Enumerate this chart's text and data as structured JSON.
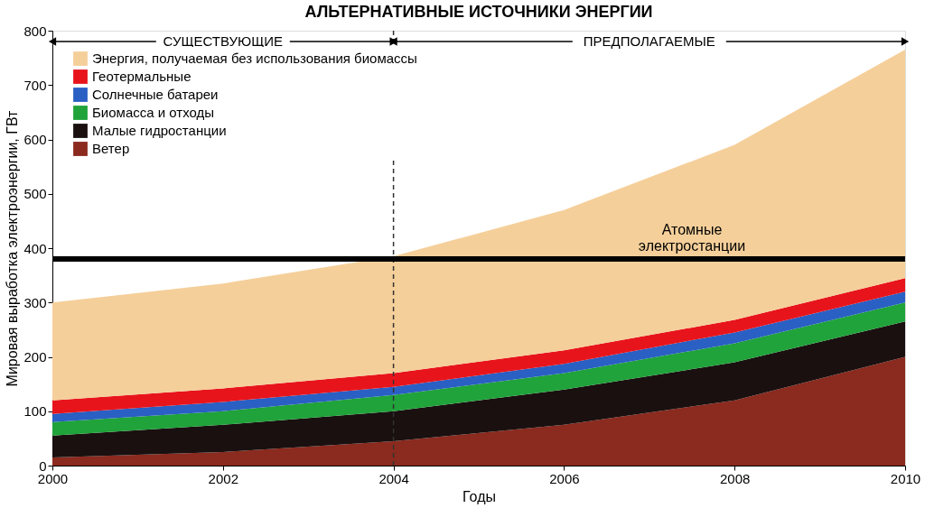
{
  "chart_data": {
    "type": "area",
    "stacked": true,
    "title": "АЛЬТЕРНАТИВНЫЕ ИСТОЧНИКИ ЭНЕРГИИ",
    "xlabel": "Годы",
    "ylabel": "Мировая выработка электроэнергии, ГВт",
    "x": [
      2000,
      2002,
      2004,
      2006,
      2008,
      2010
    ],
    "series": [
      {
        "name": "Ветер",
        "color": "#8b2a1e",
        "values": [
          15,
          25,
          45,
          75,
          120,
          200
        ]
      },
      {
        "name": "Малые гидростанции",
        "color": "#1a1010",
        "values": [
          40,
          50,
          55,
          65,
          70,
          65
        ]
      },
      {
        "name": "Биомасса и отходы",
        "color": "#1fa33a",
        "values": [
          25,
          25,
          30,
          30,
          35,
          35
        ]
      },
      {
        "name": "Солнечные батареи",
        "color": "#2a5fc4",
        "values": [
          15,
          17,
          15,
          17,
          20,
          20
        ]
      },
      {
        "name": "Геотермальные",
        "color": "#e8141c",
        "values": [
          25,
          25,
          25,
          25,
          23,
          25
        ]
      },
      {
        "name": "Энергия, получаемая без использования биомассы",
        "color": "#f5cf9a",
        "values": [
          180,
          193,
          215,
          258,
          322,
          420
        ]
      }
    ],
    "xlim": [
      2000,
      2010
    ],
    "xticks": [
      2000,
      2002,
      2004,
      2006,
      2008,
      2010
    ],
    "ylim": [
      0,
      800
    ],
    "yticks": [
      0,
      100,
      200,
      300,
      400,
      500,
      600,
      700,
      800
    ],
    "ref_lines": [
      {
        "axis": "x",
        "value": 2004,
        "label": null,
        "color": "#333333",
        "line_style": "dashed"
      },
      {
        "axis": "y",
        "value": 380,
        "label": "Атомные электростанции",
        "color": "#000000",
        "line_style": "solid"
      }
    ],
    "annotations": [
      "СУЩЕСТВУЮЩИЕ",
      "ПРЕДПОЛАГАЕМЫЕ"
    ],
    "grid": false,
    "legend": "top left"
  }
}
